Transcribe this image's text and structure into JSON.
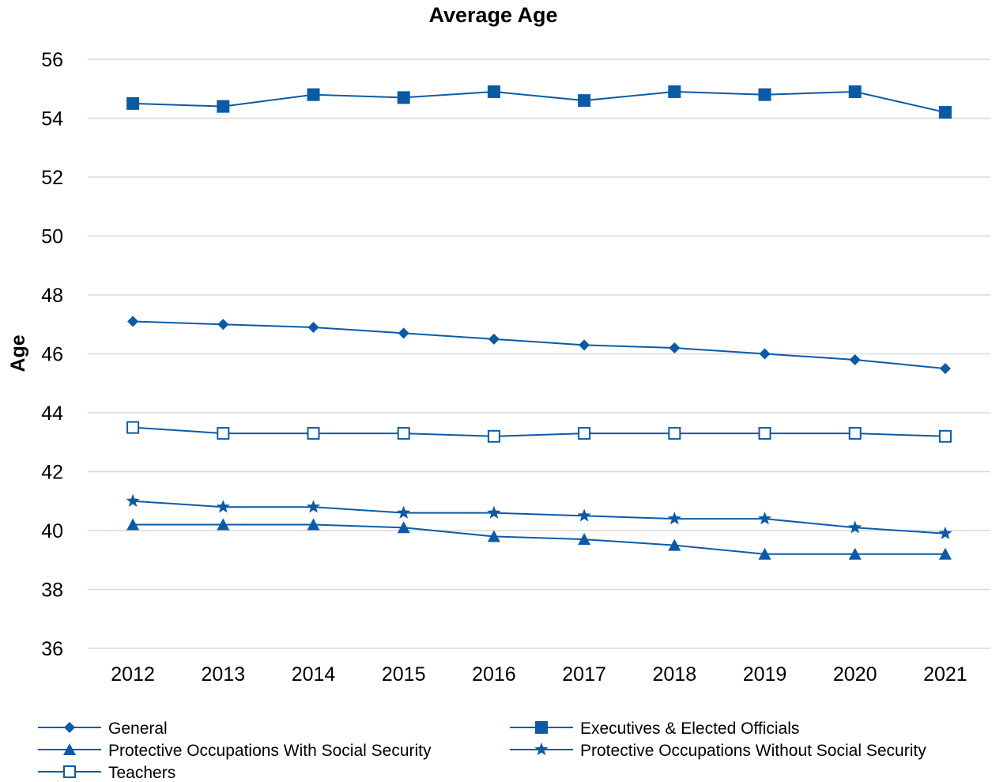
{
  "chart_data": {
    "type": "line",
    "title": "Average Age",
    "xlabel": "",
    "ylabel": "Age",
    "ylim": [
      36,
      56
    ],
    "yticks": [
      36,
      38,
      40,
      42,
      44,
      46,
      48,
      50,
      52,
      54,
      56
    ],
    "categories": [
      "2012",
      "2013",
      "2014",
      "2015",
      "2016",
      "2017",
      "2018",
      "2019",
      "2020",
      "2021"
    ],
    "grid": true,
    "legend_position": "bottom",
    "line_color": "#0b5aa6",
    "series": [
      {
        "name": "General",
        "marker": "diamond",
        "values": [
          47.1,
          47.0,
          46.9,
          46.7,
          46.5,
          46.3,
          46.2,
          46.0,
          45.8,
          45.5
        ]
      },
      {
        "name": "Executives & Elected Officials",
        "marker": "square",
        "values": [
          54.5,
          54.4,
          54.8,
          54.7,
          54.9,
          54.6,
          54.9,
          54.8,
          54.9,
          54.2
        ]
      },
      {
        "name": "Protective Occupations With Social Security",
        "marker": "triangle",
        "values": [
          40.2,
          40.2,
          40.2,
          40.1,
          39.8,
          39.7,
          39.5,
          39.2,
          39.2,
          39.2
        ]
      },
      {
        "name": "Protective Occupations Without Social Security",
        "marker": "star",
        "values": [
          41.0,
          40.8,
          40.8,
          40.6,
          40.6,
          40.5,
          40.4,
          40.4,
          40.1,
          39.9
        ]
      },
      {
        "name": "Teachers",
        "marker": "open-square",
        "values": [
          43.5,
          43.3,
          43.3,
          43.3,
          43.2,
          43.3,
          43.3,
          43.3,
          43.3,
          43.2
        ]
      }
    ]
  }
}
